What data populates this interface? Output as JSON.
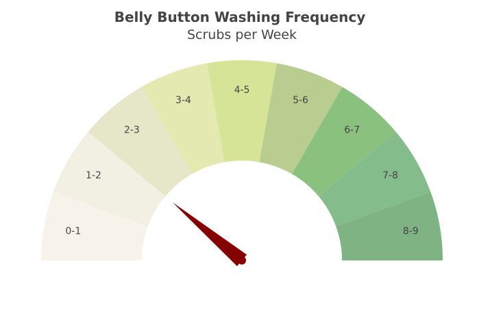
{
  "chart_data": {
    "type": "gauge",
    "title": "Belly Button Washing Frequency",
    "subtitle": "Scrubs per Week",
    "range": [
      0,
      9
    ],
    "value": 2,
    "segments": [
      {
        "label": "0-1",
        "from": 0,
        "to": 1,
        "color": "#f7f3eb"
      },
      {
        "label": "1-2",
        "from": 1,
        "to": 2,
        "color": "#f2f0e3"
      },
      {
        "label": "2-3",
        "from": 2,
        "to": 3,
        "color": "#e6e6c8"
      },
      {
        "label": "3-4",
        "from": 3,
        "to": 4,
        "color": "#e3e9b0"
      },
      {
        "label": "4-5",
        "from": 4,
        "to": 5,
        "color": "#d5e497"
      },
      {
        "label": "5-6",
        "from": 5,
        "to": 6,
        "color": "#b8cd8f"
      },
      {
        "label": "6-7",
        "from": 6,
        "to": 7,
        "color": "#8bc17f"
      },
      {
        "label": "7-8",
        "from": 7,
        "to": 8,
        "color": "#85bc8b"
      },
      {
        "label": "8-9",
        "from": 8,
        "to": 9,
        "color": "#7fb383"
      }
    ],
    "needle_color": "#850000"
  }
}
